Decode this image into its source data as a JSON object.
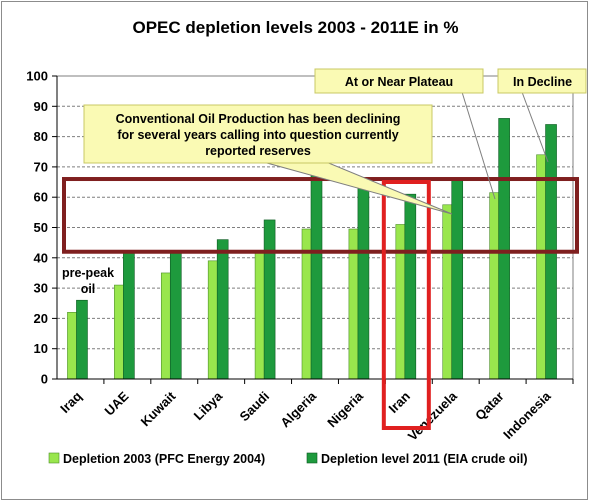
{
  "chart_data": {
    "type": "bar",
    "title": "OPEC depletion levels 2003 - 2011E in %",
    "categories": [
      "Iraq",
      "UAE",
      "Kuwait",
      "Libya",
      "Saudi",
      "Algeria",
      "Nigeria",
      "Iran",
      "Venezuela",
      "Qatar",
      "Indonesia"
    ],
    "series": [
      {
        "name": "Depletion 2003 (PFC Energy 2004)",
        "color": "#99e64d",
        "values": [
          22,
          31,
          35,
          39,
          42,
          49.5,
          49.5,
          51,
          57.5,
          61.5,
          74
        ]
      },
      {
        "name": "Depletion level 2011 (EIA crude oil)",
        "color": "#1e9a3d",
        "values": [
          26,
          42,
          42,
          46,
          52.5,
          68.5,
          64,
          61,
          65.5,
          86,
          84
        ]
      }
    ],
    "ylim": [
      0,
      100
    ],
    "yticks": [
      0,
      10,
      20,
      30,
      40,
      50,
      60,
      70,
      80,
      90,
      100
    ],
    "grid": true,
    "legend_position": "bottom",
    "annotations": {
      "conventional": [
        "Conventional Oil Production has been declining",
        "for several years calling into question currently",
        "reported reserves"
      ],
      "plateau": "At or Near Plateau",
      "decline": "In Decline",
      "prepeak": [
        "pre-peak",
        "oil"
      ]
    },
    "band": [
      42,
      66
    ],
    "highlight_category": "Iran",
    "colors": {
      "band_border": "#7f1f1f",
      "highlight_border": "#e02020",
      "callout_fill": "#fafab4",
      "callout_border": "#c8c864"
    }
  }
}
